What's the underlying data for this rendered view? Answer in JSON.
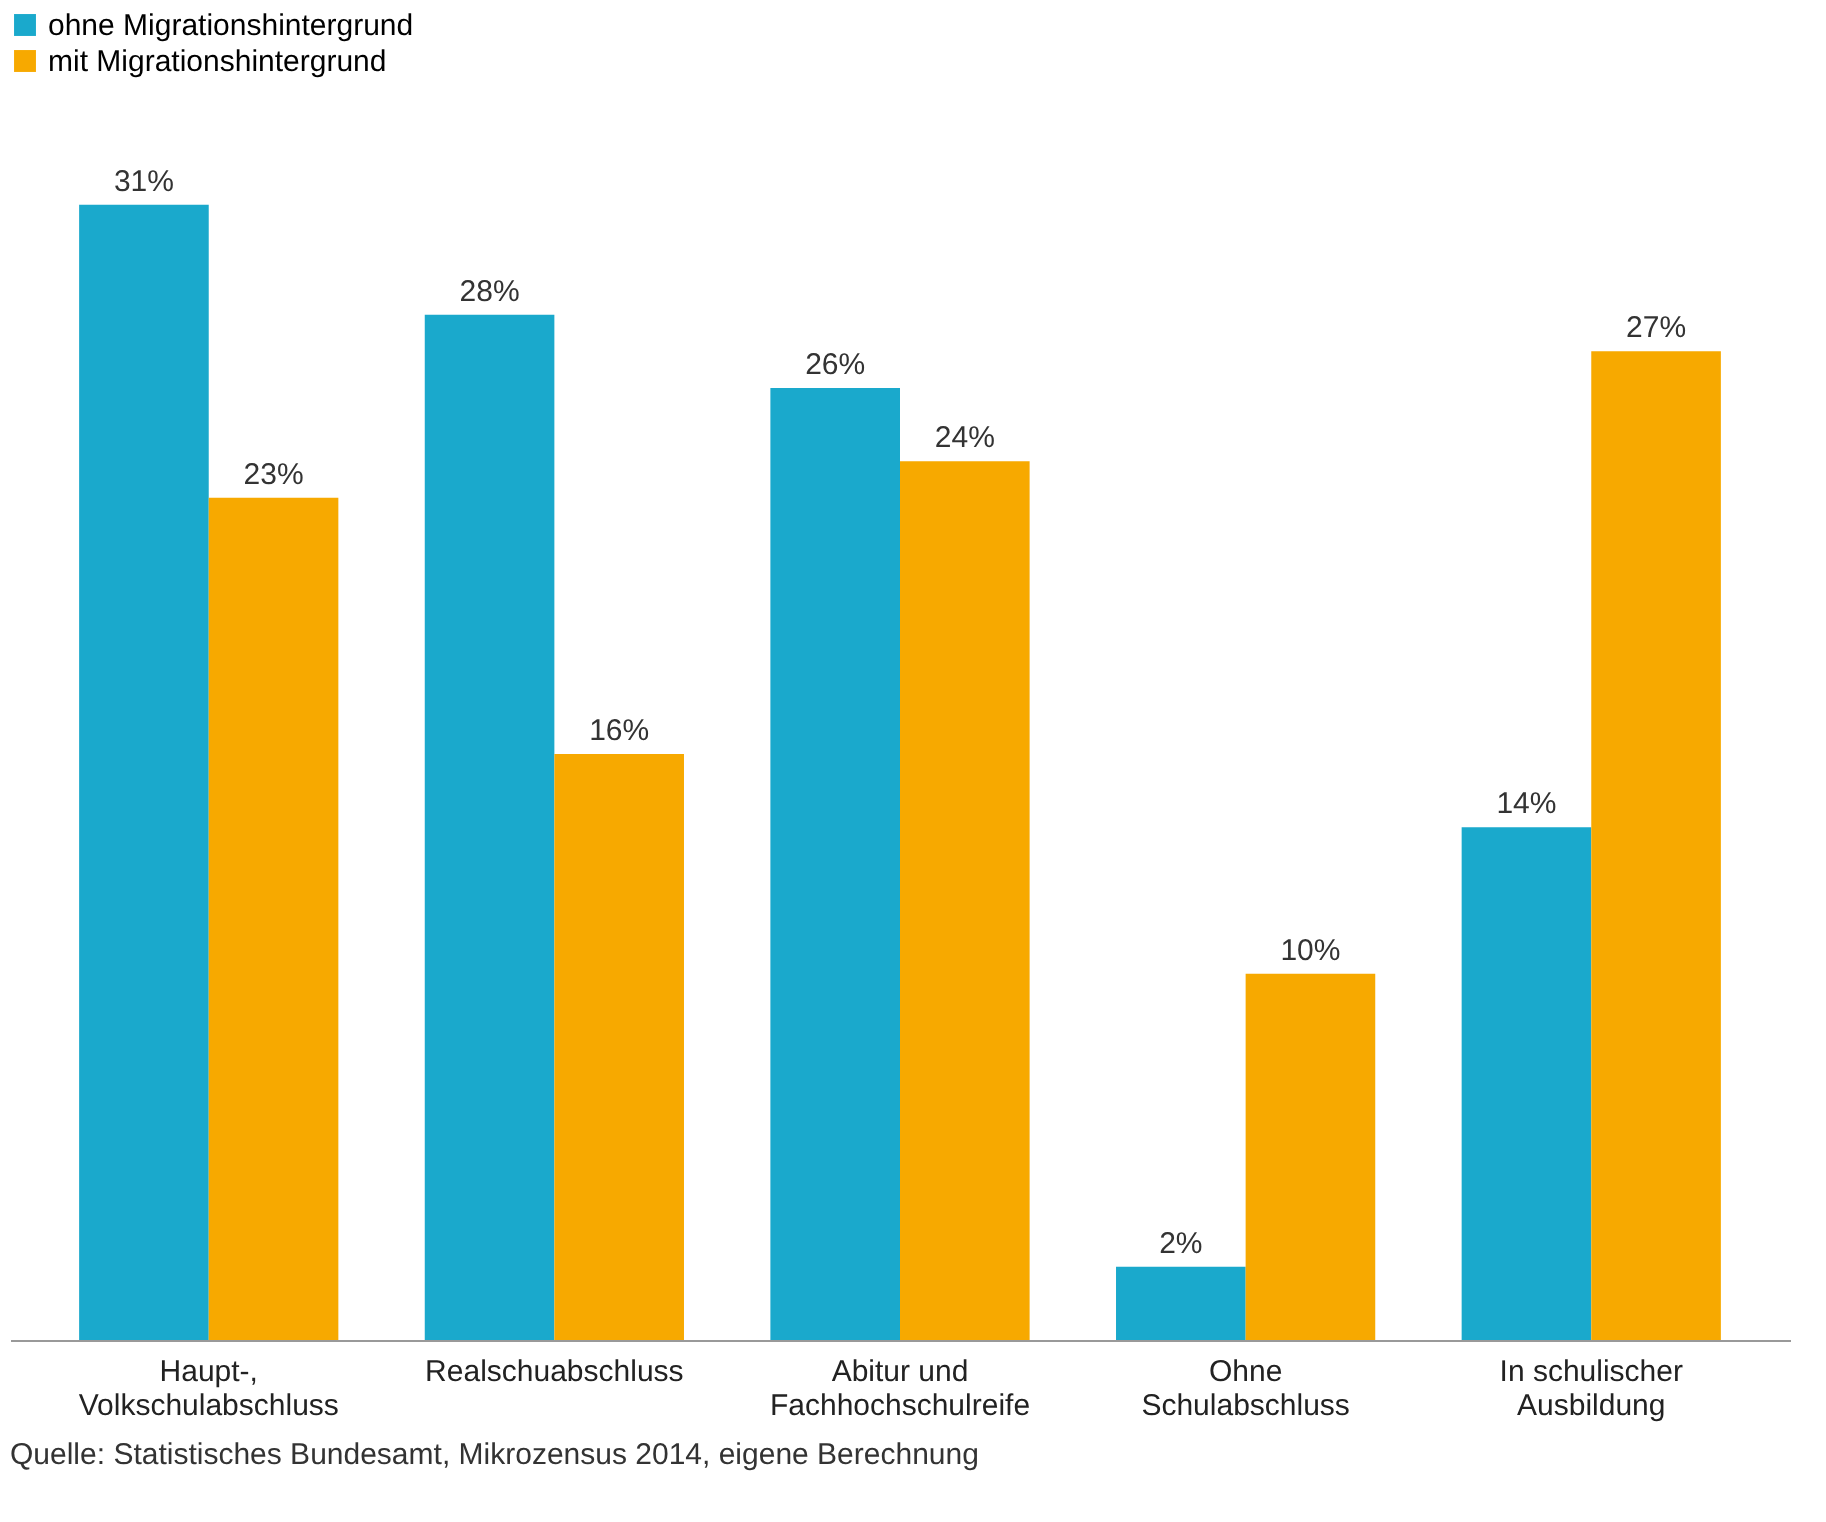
{
  "chart_data": {
    "type": "bar",
    "categories": [
      "Haupt-,\nVolkschulabschluss",
      "Realschuabschluss",
      "Abitur und\nFachhochschulreife",
      "Ohne\nSchulabschluss",
      "In schulischer\nAusbildung"
    ],
    "series": [
      {
        "name": "ohne Migrationshintergrund",
        "color": "#1aa9cc",
        "values": [
          31,
          28,
          26,
          2,
          14
        ],
        "value_labels": [
          "31%",
          "28%",
          "26%",
          "2%",
          "14%"
        ]
      },
      {
        "name": "mit Migrationshintergrund",
        "color": "#f7a900",
        "values": [
          23,
          16,
          24,
          10,
          27
        ],
        "value_labels": [
          "23%",
          "16%",
          "24%",
          "10%",
          "27%"
        ]
      }
    ],
    "grid": false,
    "legend": "top",
    "annotations": [
      "Quelle: Statistisches Bundesamt, Mikrozensus 2014, eigene Berechnung"
    ]
  }
}
